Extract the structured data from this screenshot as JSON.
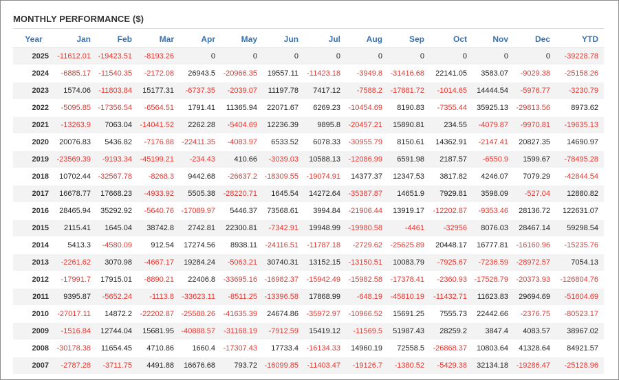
{
  "panel": {
    "title": "MONTHLY PERFORMANCE ($)"
  },
  "colors": {
    "header_text": "#3a73b0",
    "negative": "#e8352e",
    "positive": "#222222",
    "row_stripe": "#f3f3f3"
  },
  "table": {
    "columns": [
      "Year",
      "Jan",
      "Feb",
      "Mar",
      "Apr",
      "May",
      "Jun",
      "Jul",
      "Aug",
      "Sep",
      "Oct",
      "Nov",
      "Dec",
      "YTD"
    ],
    "rows": [
      [
        "2025",
        "-11612.01",
        "-19423.51",
        "-8193.26",
        "0",
        "0",
        "0",
        "0",
        "0",
        "0",
        "0",
        "0",
        "0",
        "-39228.78"
      ],
      [
        "2024",
        "-6885.17",
        "-11540.35",
        "-2172.08",
        "26943.5",
        "-20966.35",
        "19557.11",
        "-11423.18",
        "-3949.8",
        "-31416.68",
        "22141.05",
        "3583.07",
        "-9029.38",
        "-25158.26"
      ],
      [
        "2023",
        "1574.06",
        "-11803.84",
        "15177.31",
        "-6737.35",
        "-2039.07",
        "11197.78",
        "7417.12",
        "-7588.2",
        "-17881.72",
        "-1014.65",
        "14444.54",
        "-5976.77",
        "-3230.79"
      ],
      [
        "2022",
        "-5095.85",
        "-17356.54",
        "-6564.51",
        "1791.41",
        "11365.94",
        "22071.67",
        "6269.23",
        "-10454.69",
        "8190.83",
        "-7355.44",
        "35925.13",
        "-29813.56",
        "8973.62"
      ],
      [
        "2021",
        "-13263.9",
        "7063.04",
        "-14041.52",
        "2262.28",
        "-5404.69",
        "12236.39",
        "9895.8",
        "-20457.21",
        "15890.81",
        "234.55",
        "-4079.87",
        "-9970.81",
        "-19635.13"
      ],
      [
        "2020",
        "20076.83",
        "5436.82",
        "-7176.88",
        "-22411.35",
        "-4083.97",
        "6533.52",
        "6078.33",
        "-30955.79",
        "8150.61",
        "14362.91",
        "-2147.41",
        "20827.35",
        "14690.97"
      ],
      [
        "2019",
        "-23569.39",
        "-9193.34",
        "-45199.21",
        "-234.43",
        "410.66",
        "-3039.03",
        "10588.13",
        "-12086.99",
        "6591.98",
        "2187.57",
        "-6550.9",
        "1599.67",
        "-78495.28"
      ],
      [
        "2018",
        "10702.44",
        "-32567.78",
        "-8268.3",
        "9442.68",
        "-26637.2",
        "-18309.55",
        "-19074.91",
        "14377.37",
        "12347.53",
        "3817.82",
        "4246.07",
        "7079.29",
        "-42844.54"
      ],
      [
        "2017",
        "16678.77",
        "17668.23",
        "-4933.92",
        "5505.38",
        "-28220.71",
        "1645.54",
        "14272.64",
        "-35387.87",
        "14651.9",
        "7929.81",
        "3598.09",
        "-527.04",
        "12880.82"
      ],
      [
        "2016",
        "28465.94",
        "35292.92",
        "-5640.76",
        "-17089.97",
        "5446.37",
        "73568.61",
        "3994.84",
        "-21906.44",
        "13919.17",
        "-12202.87",
        "-9353.46",
        "28136.72",
        "122631.07"
      ],
      [
        "2015",
        "2115.41",
        "1645.04",
        "38742.8",
        "2742.81",
        "22300.81",
        "-7342.91",
        "19948.99",
        "-19980.58",
        "-4461",
        "-32956",
        "8076.03",
        "28467.14",
        "59298.54"
      ],
      [
        "2014",
        "5413.3",
        "-4580.09",
        "912.54",
        "17274.56",
        "8938.11",
        "-24116.51",
        "-11787.18",
        "-2729.62",
        "-25625.89",
        "20448.17",
        "16777.81",
        "-16160.96",
        "-15235.76"
      ],
      [
        "2013",
        "-2261.62",
        "3070.98",
        "-4667.17",
        "19284.24",
        "-5063.21",
        "30740.31",
        "13152.15",
        "-13150.51",
        "10083.79",
        "-7925.67",
        "-7236.59",
        "-28972.57",
        "7054.13"
      ],
      [
        "2012",
        "-17991.7",
        "17915.01",
        "-8890.21",
        "22406.8",
        "-33695.16",
        "-16982.37",
        "-15942.49",
        "-15982.58",
        "-17378.41",
        "-2360.93",
        "-17528.79",
        "-20373.93",
        "-126804.76"
      ],
      [
        "2011",
        "9395.87",
        "-5652.24",
        "-1113.8",
        "-33623.11",
        "-8511.25",
        "-13396.58",
        "17868.99",
        "-648.19",
        "-45810.19",
        "-11432.71",
        "11623.83",
        "29694.69",
        "-51604.69"
      ],
      [
        "2010",
        "-27017.11",
        "14872.2",
        "-22202.87",
        "-25588.26",
        "-41635.39",
        "24674.86",
        "-35972.97",
        "-10966.52",
        "15691.25",
        "7555.73",
        "22442.66",
        "-2376.75",
        "-80523.17"
      ],
      [
        "2009",
        "-1516.84",
        "12744.04",
        "15681.95",
        "-40888.57",
        "-31168.19",
        "-7912.59",
        "15419.12",
        "-11569.5",
        "51987.43",
        "28259.2",
        "3847.4",
        "4083.57",
        "38967.02"
      ],
      [
        "2008",
        "-30178.38",
        "11654.45",
        "4710.86",
        "1660.4",
        "-17307.43",
        "17733.4",
        "-16134.33",
        "14960.19",
        "72558.5",
        "-26868.37",
        "10803.64",
        "41328.64",
        "84921.57"
      ],
      [
        "2007",
        "-2787.28",
        "-3711.75",
        "4491.88",
        "16676.68",
        "793.72",
        "-16099.85",
        "-11403.47",
        "-19126.7",
        "-1380.52",
        "-5429.38",
        "32134.18",
        "-19286.47",
        "-25128.96"
      ]
    ]
  }
}
